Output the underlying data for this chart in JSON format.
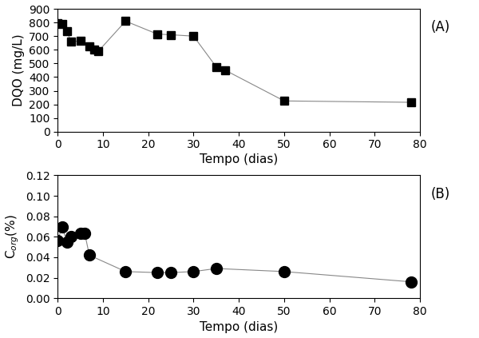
{
  "panel_A": {
    "x": [
      0,
      1,
      2,
      3,
      5,
      7,
      8,
      9,
      15,
      22,
      25,
      30,
      35,
      37,
      50,
      78
    ],
    "y": [
      795,
      790,
      735,
      660,
      665,
      625,
      600,
      590,
      810,
      715,
      710,
      700,
      475,
      450,
      225,
      215
    ],
    "ylabel": "DQO (mg/L)",
    "xlabel": "Tempo (dias)",
    "ylim": [
      0,
      900
    ],
    "yticks": [
      0,
      100,
      200,
      300,
      400,
      500,
      600,
      700,
      800,
      900
    ],
    "xlim": [
      0,
      80
    ],
    "xticks": [
      0,
      10,
      20,
      30,
      40,
      50,
      60,
      70,
      80
    ],
    "label": "(A)"
  },
  "panel_B": {
    "x": [
      0,
      1,
      2,
      3,
      5,
      6,
      7,
      15,
      22,
      25,
      30,
      35,
      50,
      78
    ],
    "y": [
      0.056,
      0.07,
      0.055,
      0.06,
      0.063,
      0.063,
      0.042,
      0.026,
      0.025,
      0.025,
      0.026,
      0.029,
      0.026,
      0.016
    ],
    "ylabel": "C$_{org}$(%)",
    "xlabel": "Tempo (dias)",
    "ylim": [
      0.0,
      0.12
    ],
    "yticks": [
      0.0,
      0.02,
      0.04,
      0.06,
      0.08,
      0.1,
      0.12
    ],
    "xlim": [
      0,
      80
    ],
    "xticks": [
      0,
      10,
      20,
      30,
      40,
      50,
      60,
      70,
      80
    ],
    "label": "(B)"
  },
  "marker_color": "#000000",
  "line_color": "#888888",
  "bg_color": "#ffffff",
  "marker_A": "s",
  "marker_B": "o",
  "markersize_A": 7,
  "markersize_B": 10,
  "linewidth": 0.8,
  "ylabel_fontsize": 11,
  "xlabel_fontsize": 11,
  "tick_fontsize": 10,
  "panel_label_fontsize": 12
}
